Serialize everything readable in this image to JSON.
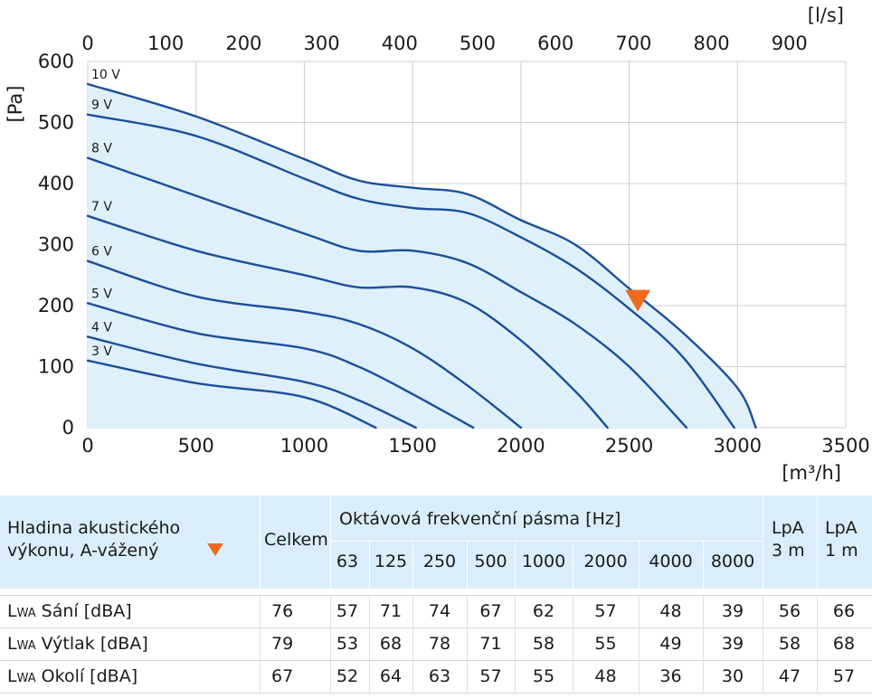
{
  "chart_data": {
    "type": "line",
    "title": "",
    "x_unit_bottom": "[m³/h]",
    "x_unit_top": "[l/s]",
    "y_unit": "[Pa]",
    "x_ticks_bottom": [
      0,
      500,
      1000,
      1500,
      2000,
      2500,
      3000,
      3500
    ],
    "x_ticks_top": [
      0,
      100,
      200,
      300,
      400,
      500,
      600,
      700,
      800,
      900
    ],
    "y_ticks": [
      0,
      100,
      200,
      300,
      400,
      500,
      600
    ],
    "xlim": [
      0,
      3500
    ],
    "ylim": [
      0,
      600
    ],
    "top_axis_factor": 3.6,
    "grid": true,
    "fill_color": "#dff0fa",
    "line_color": "#1b4f9c",
    "marker_color": "#ef6a1f",
    "grid_color": "#cfcfcf",
    "operating_point": {
      "x": 2540,
      "y": 202
    },
    "series": [
      {
        "name": "10 V",
        "points": [
          [
            0,
            563
          ],
          [
            500,
            510
          ],
          [
            1000,
            440
          ],
          [
            1250,
            405
          ],
          [
            1500,
            393
          ],
          [
            1750,
            383
          ],
          [
            2000,
            340
          ],
          [
            2250,
            300
          ],
          [
            2500,
            228
          ],
          [
            2750,
            155
          ],
          [
            3000,
            65
          ],
          [
            3085,
            0
          ]
        ]
      },
      {
        "name": "9 V",
        "points": [
          [
            0,
            513
          ],
          [
            500,
            478
          ],
          [
            1000,
            408
          ],
          [
            1250,
            375
          ],
          [
            1500,
            360
          ],
          [
            1750,
            352
          ],
          [
            2000,
            312
          ],
          [
            2250,
            262
          ],
          [
            2500,
            195
          ],
          [
            2750,
            115
          ],
          [
            2985,
            0
          ]
        ]
      },
      {
        "name": "8 V",
        "points": [
          [
            0,
            442
          ],
          [
            500,
            380
          ],
          [
            1000,
            318
          ],
          [
            1250,
            290
          ],
          [
            1500,
            290
          ],
          [
            1750,
            270
          ],
          [
            2000,
            222
          ],
          [
            2250,
            170
          ],
          [
            2500,
            100
          ],
          [
            2765,
            0
          ]
        ]
      },
      {
        "name": "7 V",
        "points": [
          [
            0,
            347
          ],
          [
            500,
            290
          ],
          [
            1000,
            250
          ],
          [
            1250,
            230
          ],
          [
            1500,
            230
          ],
          [
            1750,
            205
          ],
          [
            2000,
            143
          ],
          [
            2250,
            60
          ],
          [
            2400,
            0
          ]
        ]
      },
      {
        "name": "6 V",
        "points": [
          [
            0,
            273
          ],
          [
            500,
            215
          ],
          [
            1000,
            190
          ],
          [
            1250,
            170
          ],
          [
            1500,
            130
          ],
          [
            1750,
            70
          ],
          [
            2000,
            0
          ]
        ]
      },
      {
        "name": "5 V",
        "points": [
          [
            0,
            204
          ],
          [
            500,
            155
          ],
          [
            1000,
            130
          ],
          [
            1250,
            100
          ],
          [
            1500,
            55
          ],
          [
            1780,
            0
          ]
        ]
      },
      {
        "name": "4 V",
        "points": [
          [
            0,
            149
          ],
          [
            500,
            105
          ],
          [
            1000,
            75
          ],
          [
            1250,
            45
          ],
          [
            1515,
            0
          ]
        ]
      },
      {
        "name": "3 V",
        "points": [
          [
            0,
            110
          ],
          [
            500,
            73
          ],
          [
            1000,
            50
          ],
          [
            1330,
            0
          ]
        ]
      }
    ]
  },
  "table": {
    "header_label_line1": "Hladina akustického",
    "header_label_line2": "výkonu, A-vážený",
    "total_header": "Celkem",
    "octave_header": "Oktávová frekvenční pásma [Hz]",
    "bands": [
      "63",
      "125",
      "250",
      "500",
      "1000",
      "2000",
      "4000",
      "8000"
    ],
    "lpa3_line1": "LpA",
    "lpa3_line2": "3 m",
    "lpa1_line1": "LpA",
    "lpa1_line2": "1 m",
    "rows": [
      {
        "prefix": "L",
        "sub": "WA",
        "label": "Sání [dBA]",
        "total": "76",
        "values": [
          "57",
          "71",
          "74",
          "67",
          "62",
          "57",
          "48",
          "39"
        ],
        "lpa3": "56",
        "lpa1": "66"
      },
      {
        "prefix": "L",
        "sub": "WA",
        "label": "Výtlak [dBA]",
        "total": "79",
        "values": [
          "53",
          "68",
          "78",
          "71",
          "58",
          "55",
          "49",
          "39"
        ],
        "lpa3": "58",
        "lpa1": "68"
      },
      {
        "prefix": "L",
        "sub": "WA",
        "label": "Okolí [dBA]",
        "total": "67",
        "values": [
          "52",
          "64",
          "63",
          "57",
          "55",
          "48",
          "36",
          "30"
        ],
        "lpa3": "47",
        "lpa1": "57"
      }
    ]
  }
}
